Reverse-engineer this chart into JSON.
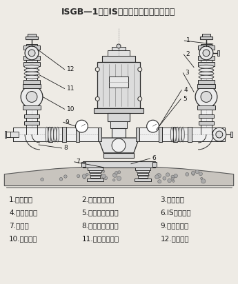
{
  "title": "ISGB—1、配IS型联接板，加隔振器安装",
  "bg_color": "#eeebe5",
  "text_color": "#1a1a1a",
  "line_color": "#2a2a2a",
  "legend_items": [
    [
      "1.进口阀门",
      "2.进口扰性接头",
      "3.进口弯管"
    ],
    [
      "4.进口压力表",
      "5.进口直管取压段",
      "6.IS型联接板"
    ],
    [
      "7.隔振器",
      "8.出口直管取压段",
      "9.出口压力表"
    ],
    [
      "10.出口弯管",
      "11.出口扰性接头",
      "12.出口阀门"
    ]
  ]
}
